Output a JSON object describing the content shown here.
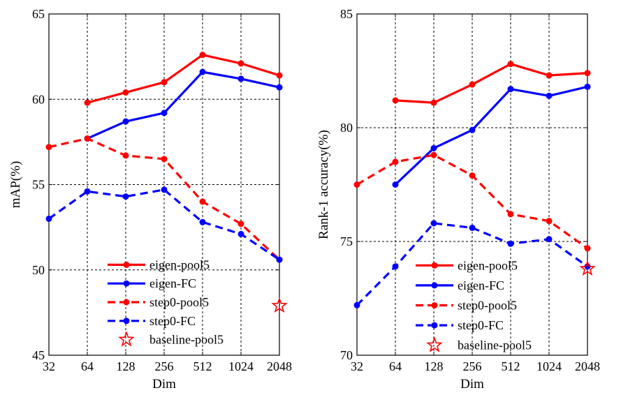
{
  "chart_data": [
    {
      "type": "line",
      "xlabel": "Dim",
      "ylabel": "mAP(%)",
      "categories": [
        "32",
        "64",
        "128",
        "256",
        "512",
        "1024",
        "2048"
      ],
      "ylim": [
        45,
        65
      ],
      "yticks": [
        45,
        50,
        55,
        60,
        65
      ],
      "grid": true,
      "legend_position": "bottom-left",
      "series": [
        {
          "name": "eigen-pool5",
          "color": "#ff0000",
          "dash": false,
          "values": [
            null,
            59.8,
            60.4,
            61.0,
            62.6,
            62.1,
            61.4
          ]
        },
        {
          "name": "eigen-FC",
          "color": "#0000ff",
          "dash": false,
          "values": [
            null,
            57.7,
            58.7,
            59.2,
            61.6,
            61.2,
            60.7
          ]
        },
        {
          "name": "step0-pool5",
          "color": "#ff0000",
          "dash": true,
          "values": [
            57.2,
            57.7,
            56.7,
            56.5,
            54.0,
            52.7,
            50.6
          ]
        },
        {
          "name": "step0-FC",
          "color": "#0000ff",
          "dash": true,
          "values": [
            53.0,
            54.6,
            54.3,
            54.7,
            52.8,
            52.1,
            50.6
          ]
        }
      ],
      "markers": [
        {
          "name": "baseline-pool5",
          "color": "#ff0000",
          "shape": "star",
          "x": "2048",
          "y": 47.9
        }
      ]
    },
    {
      "type": "line",
      "xlabel": "Dim",
      "ylabel": "Rank-1 accuracy(%)",
      "categories": [
        "32",
        "64",
        "128",
        "256",
        "512",
        "1024",
        "2048"
      ],
      "ylim": [
        70,
        85
      ],
      "yticks": [
        70,
        75,
        80,
        85
      ],
      "grid": true,
      "legend_position": "bottom-right",
      "series": [
        {
          "name": "eigen-pool5",
          "color": "#ff0000",
          "dash": false,
          "values": [
            null,
            81.2,
            81.1,
            81.9,
            82.8,
            82.3,
            82.4
          ]
        },
        {
          "name": "eigen-FC",
          "color": "#0000ff",
          "dash": false,
          "values": [
            null,
            77.5,
            79.1,
            79.9,
            81.7,
            81.4,
            81.8
          ]
        },
        {
          "name": "step0-pool5",
          "color": "#ff0000",
          "dash": true,
          "values": [
            77.5,
            78.5,
            78.8,
            77.9,
            76.2,
            75.9,
            74.7
          ]
        },
        {
          "name": "step0-FC",
          "color": "#0000ff",
          "dash": true,
          "values": [
            72.2,
            73.9,
            75.8,
            75.6,
            74.9,
            75.1,
            73.9
          ]
        }
      ],
      "markers": [
        {
          "name": "baseline-pool5",
          "color": "#ff0000",
          "shape": "star",
          "x": "2048",
          "y": 73.8
        }
      ]
    }
  ]
}
